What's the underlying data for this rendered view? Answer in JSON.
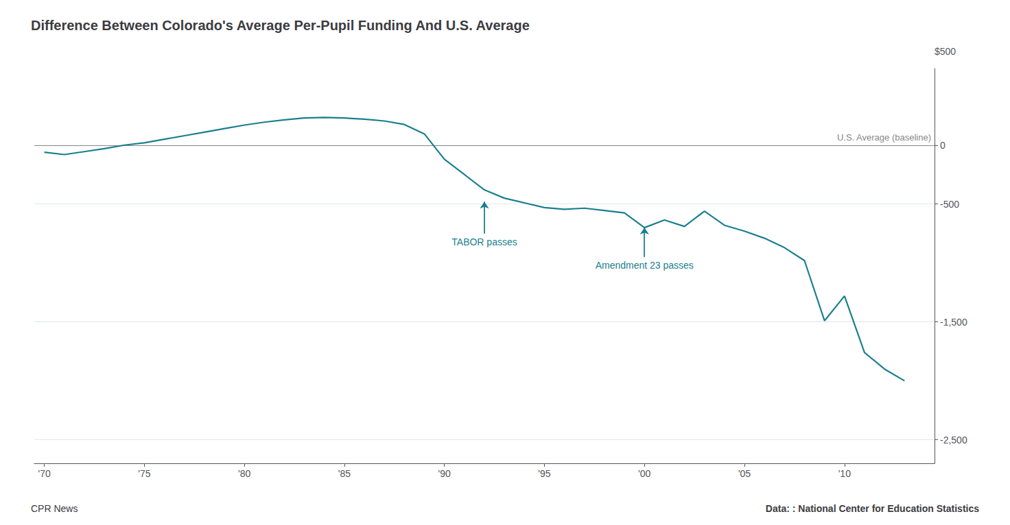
{
  "chart_data": {
    "type": "line",
    "title": "Difference Between Colorado's Average Per-Pupil Funding And U.S. Average",
    "ylabel": "$500",
    "x": [
      1970,
      1971,
      1972,
      1973,
      1974,
      1975,
      1976,
      1977,
      1978,
      1979,
      1980,
      1981,
      1982,
      1983,
      1984,
      1985,
      1986,
      1987,
      1988,
      1989,
      1990,
      1991,
      1992,
      1993,
      1994,
      1995,
      1996,
      1997,
      1998,
      1999,
      2000,
      2001,
      2002,
      2003,
      2004,
      2005,
      2006,
      2007,
      2008,
      2009,
      2010,
      2011,
      2012,
      2013
    ],
    "values": [
      -60,
      -80,
      -55,
      -30,
      0,
      20,
      50,
      80,
      110,
      140,
      170,
      195,
      215,
      230,
      235,
      230,
      220,
      205,
      175,
      95,
      -120,
      -250,
      -380,
      -450,
      -490,
      -530,
      -545,
      -535,
      -555,
      -575,
      -700,
      -635,
      -690,
      -560,
      -680,
      -730,
      -790,
      -870,
      -980,
      -1490,
      -1280,
      -1760,
      -1900,
      -2000
    ],
    "color": "#1a7f8e",
    "xlim": [
      1969.5,
      2014.5
    ],
    "xticks": [
      {
        "value": 1970,
        "label": "'70"
      },
      {
        "value": 1975,
        "label": "'75"
      },
      {
        "value": 1980,
        "label": "'80"
      },
      {
        "value": 1985,
        "label": "'85"
      },
      {
        "value": 1990,
        "label": "'90"
      },
      {
        "value": 1995,
        "label": "'95"
      },
      {
        "value": 2000,
        "label": "'00"
      },
      {
        "value": 2005,
        "label": "'05"
      },
      {
        "value": 2010,
        "label": "'10"
      }
    ],
    "ylim": [
      -2700,
      650
    ],
    "yticks": [
      0,
      -500,
      {
        "value": -1500,
        "label": "-1,500"
      },
      {
        "value": -2500,
        "label": "-2,500"
      }
    ],
    "grid": true,
    "annotations": [
      {
        "text": "U.S. Average (baseline)",
        "y": 0,
        "color": "#888888"
      },
      {
        "text": "TABOR passes",
        "x": 1992,
        "y_from": -750,
        "y_to": -480,
        "color": "#1a7f8e"
      },
      {
        "text": "Amendment 23 passes",
        "x": 2000,
        "y_from": -950,
        "y_to": -700,
        "color": "#1a7f8e"
      }
    ],
    "sources": [
      "CPR News",
      "Data: : National Center for Education Statistics"
    ]
  }
}
